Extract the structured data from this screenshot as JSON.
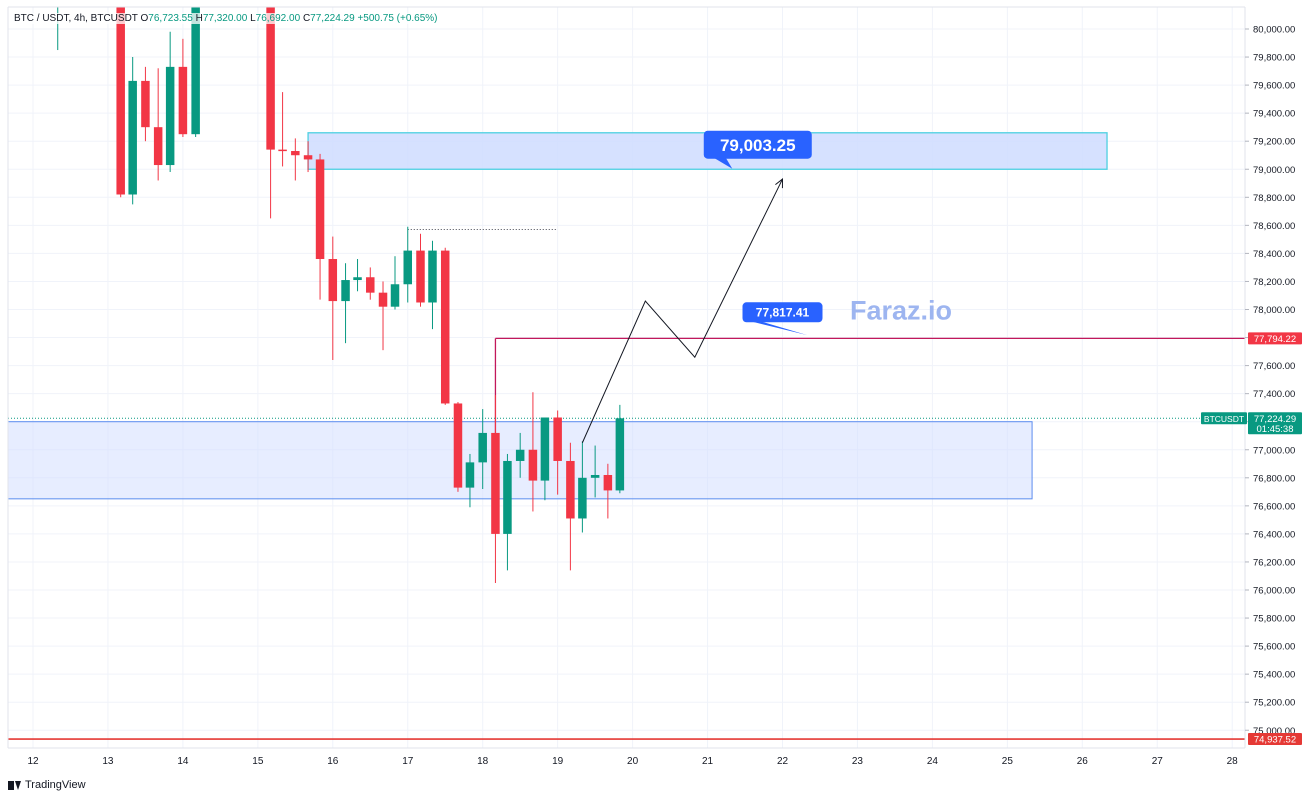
{
  "header": {
    "symbol": "BTC / USDT, 4h, BTCUSDT",
    "open_label": "O",
    "open": "76,723.55",
    "high_label": "H",
    "high": "77,320.00",
    "low_label": "L",
    "low": "76,692.00",
    "close_label": "C",
    "close": "77,224.29",
    "change": "+500.75 (+0.65%)"
  },
  "watermark": "Faraz.io",
  "brand": "TradingView",
  "colors": {
    "up": "#089981",
    "down": "#f23645",
    "zone_fill": "#cfdcff",
    "zone_top_border": "#4dd0e1",
    "callout": "#2962ff",
    "resistance_line": "#c2185b",
    "support_line": "#e53935",
    "watermark": "#9db5f0"
  },
  "chart_data": {
    "type": "candlestick",
    "symbol": "BTCUSDT",
    "interval": "4h",
    "y_axis": {
      "range": [
        74950,
        80150
      ],
      "ticks": [
        "75,000.00",
        "75,200.00",
        "75,400.00",
        "75,600.00",
        "75,800.00",
        "76,000.00",
        "76,200.00",
        "76,400.00",
        "76,600.00",
        "76,800.00",
        "77,000.00",
        "77,200.00",
        "77,400.00",
        "77,600.00",
        "77,800.00",
        "78,000.00",
        "78,200.00",
        "78,400.00",
        "78,600.00",
        "78,800.00",
        "79,000.00",
        "79,200.00",
        "79,400.00",
        "79,600.00",
        "79,800.00",
        "80,000.00"
      ]
    },
    "x_axis": {
      "ticks": [
        "12",
        "13",
        "14",
        "15",
        "16",
        "17",
        "18",
        "19",
        "20",
        "21",
        "22",
        "23",
        "24",
        "25",
        "26",
        "27",
        "28"
      ]
    },
    "candles": [
      {
        "t": 12.33,
        "o": 80400,
        "h": 80400,
        "l": 79850,
        "c": 80400
      },
      {
        "t": 13.17,
        "o": 80400,
        "h": 80400,
        "l": 78800,
        "c": 78820
      },
      {
        "t": 13.33,
        "o": 78820,
        "h": 79800,
        "l": 78750,
        "c": 79630
      },
      {
        "t": 13.5,
        "o": 79630,
        "h": 79730,
        "l": 79200,
        "c": 79300
      },
      {
        "t": 13.67,
        "o": 79300,
        "h": 79720,
        "l": 78920,
        "c": 79030
      },
      {
        "t": 13.83,
        "o": 79030,
        "h": 79980,
        "l": 78980,
        "c": 79730
      },
      {
        "t": 14.0,
        "o": 79730,
        "h": 79930,
        "l": 79230,
        "c": 79250
      },
      {
        "t": 14.17,
        "o": 79250,
        "h": 80400,
        "l": 79230,
        "c": 80400
      },
      {
        "t": 15.17,
        "o": 80400,
        "h": 80400,
        "l": 78650,
        "c": 79140
      },
      {
        "t": 15.33,
        "o": 79140,
        "h": 79550,
        "l": 79020,
        "c": 79130
      },
      {
        "t": 15.5,
        "o": 79130,
        "h": 79220,
        "l": 78920,
        "c": 79100
      },
      {
        "t": 15.67,
        "o": 79100,
        "h": 79200,
        "l": 78980,
        "c": 79070
      },
      {
        "t": 15.83,
        "o": 79070,
        "h": 79110,
        "l": 78070,
        "c": 78360
      },
      {
        "t": 16.0,
        "o": 78360,
        "h": 78520,
        "l": 77640,
        "c": 78060
      },
      {
        "t": 16.17,
        "o": 78060,
        "h": 78330,
        "l": 77760,
        "c": 78210
      },
      {
        "t": 16.33,
        "o": 78210,
        "h": 78360,
        "l": 78130,
        "c": 78230
      },
      {
        "t": 16.5,
        "o": 78230,
        "h": 78300,
        "l": 78070,
        "c": 78120
      },
      {
        "t": 16.67,
        "o": 78120,
        "h": 78200,
        "l": 77710,
        "c": 78020
      },
      {
        "t": 16.83,
        "o": 78020,
        "h": 78380,
        "l": 78000,
        "c": 78180
      },
      {
        "t": 17.0,
        "o": 78180,
        "h": 78590,
        "l": 78050,
        "c": 78420
      },
      {
        "t": 17.17,
        "o": 78420,
        "h": 78540,
        "l": 78020,
        "c": 78050
      },
      {
        "t": 17.33,
        "o": 78050,
        "h": 78490,
        "l": 77860,
        "c": 78420
      },
      {
        "t": 17.5,
        "o": 78420,
        "h": 78440,
        "l": 77320,
        "c": 77330
      },
      {
        "t": 17.67,
        "o": 77330,
        "h": 77340,
        "l": 76700,
        "c": 76730
      },
      {
        "t": 17.83,
        "o": 76730,
        "h": 76970,
        "l": 76590,
        "c": 76910
      },
      {
        "t": 18.0,
        "o": 76910,
        "h": 77290,
        "l": 76720,
        "c": 77120
      },
      {
        "t": 18.17,
        "o": 77120,
        "h": 77390,
        "l": 76050,
        "c": 76400
      },
      {
        "t": 18.33,
        "o": 76400,
        "h": 76970,
        "l": 76140,
        "c": 76920
      },
      {
        "t": 18.5,
        "o": 76920,
        "h": 77120,
        "l": 76800,
        "c": 77000
      },
      {
        "t": 18.67,
        "o": 77000,
        "h": 77410,
        "l": 76560,
        "c": 76780
      },
      {
        "t": 18.83,
        "o": 76780,
        "h": 77230,
        "l": 76640,
        "c": 77230
      },
      {
        "t": 19.0,
        "o": 77230,
        "h": 77280,
        "l": 76680,
        "c": 76920
      },
      {
        "t": 19.17,
        "o": 76920,
        "h": 77050,
        "l": 76140,
        "c": 76510
      },
      {
        "t": 19.33,
        "o": 76510,
        "h": 77060,
        "l": 76410,
        "c": 76800
      },
      {
        "t": 19.5,
        "o": 76800,
        "h": 77030,
        "l": 76660,
        "c": 76820
      },
      {
        "t": 19.67,
        "o": 76820,
        "h": 76900,
        "l": 76510,
        "c": 76710
      },
      {
        "t": 19.83,
        "o": 76710,
        "h": 77320,
        "l": 76690,
        "c": 77224.29
      }
    ],
    "zones": [
      {
        "name": "upper-zone",
        "from_t": 15.67,
        "to_t": 26.33,
        "low": 79000,
        "high": 79260
      },
      {
        "name": "lower-zone",
        "from_t": 11.6,
        "to_t": 25.33,
        "low": 76650,
        "high": 77200
      }
    ],
    "horizontal_lines": [
      {
        "name": "resistance",
        "price": 77794.22,
        "from_t": 18.17,
        "label": "77,794.22"
      },
      {
        "name": "support",
        "price": 74937.52,
        "from_t": 11.6,
        "label": "74,937.52"
      },
      {
        "name": "high-marker",
        "price": 78570,
        "from_t": 17.0,
        "to_t": 19.0,
        "label": ""
      }
    ],
    "projection_path": [
      {
        "t": 19.33,
        "price": 77050
      },
      {
        "t": 20.17,
        "price": 78060
      },
      {
        "t": 20.83,
        "price": 77660
      },
      {
        "t": 22.0,
        "price": 78930
      }
    ],
    "callouts": [
      {
        "name": "target-callout",
        "text": "79,003.25",
        "t": 21.67,
        "price": 79175,
        "anchor_t": 21.33,
        "anchor_price": 79003.25,
        "size": "large"
      },
      {
        "name": "resistance-callout",
        "text": "77,817.41",
        "t": 22.0,
        "price": 77980,
        "anchor_t": 22.33,
        "anchor_price": 77817.41,
        "size": "small"
      }
    ],
    "last_price": {
      "symbol": "BTCUSDT",
      "price": 77224.29,
      "price_label": "77,224.29",
      "countdown": "01:45:38"
    },
    "grid": true,
    "legend": "top-left"
  }
}
